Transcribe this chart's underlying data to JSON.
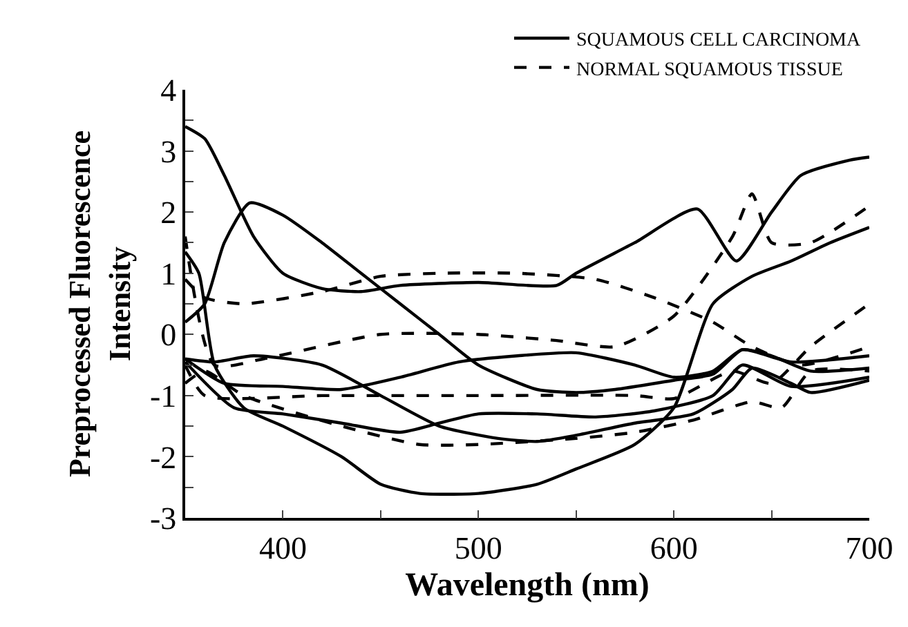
{
  "chart_data": {
    "type": "line",
    "xlabel": "Wavelength (nm)",
    "ylabel": "Preprocessed Fluorescence\nIntensity",
    "xlim": [
      350,
      700
    ],
    "ylim": [
      -3,
      4
    ],
    "xticks": [
      {
        "value": 350,
        "label": null
      },
      400,
      {
        "value": 450,
        "label": null
      },
      500,
      {
        "value": 550,
        "label": null
      },
      600,
      {
        "value": 650,
        "label": null
      },
      700
    ],
    "yticks": [
      -3,
      {
        "value": -2.5,
        "label": null
      },
      -2,
      {
        "value": -1.5,
        "label": null
      },
      -1,
      {
        "value": -0.5,
        "label": null
      },
      0,
      {
        "value": 0.5,
        "label": null
      },
      1,
      {
        "value": 1.5,
        "label": null
      },
      2,
      {
        "value": 2.5,
        "label": null
      },
      3,
      {
        "value": 3.5,
        "label": null
      },
      4
    ],
    "grid": false,
    "legend": "top right",
    "marker": "none",
    "series": [
      {
        "name": "SQUAMOUS CELL CARCINOMA",
        "color": "#000000",
        "line_style": "solid",
        "x": [
          350,
          360,
          370,
          385,
          400,
          420,
          440,
          460,
          500,
          540,
          550,
          580,
          612,
          632,
          650,
          665,
          690,
          700
        ],
        "values": [
          3.4,
          3.2,
          2.6,
          1.6,
          1.0,
          0.75,
          0.7,
          0.8,
          0.85,
          0.8,
          1.0,
          1.5,
          2.05,
          1.2,
          2.0,
          2.6,
          2.85,
          2.9
        ]
      },
      {
        "color": "#000000",
        "line_style": "solid",
        "x": [
          350,
          360,
          370,
          383,
          400,
          420,
          440,
          460,
          480,
          500,
          530,
          550,
          570,
          600,
          620,
          635,
          650,
          670,
          700
        ],
        "values": [
          0.2,
          0.5,
          1.5,
          2.15,
          1.95,
          1.5,
          1.0,
          0.5,
          0.0,
          -0.5,
          -0.9,
          -0.95,
          -0.9,
          -0.75,
          -0.65,
          -0.25,
          -0.35,
          -0.6,
          -0.55
        ]
      },
      {
        "color": "#000000",
        "line_style": "solid",
        "x": [
          350,
          357,
          365,
          380,
          400,
          430,
          450,
          470,
          500,
          530,
          550,
          580,
          600,
          620,
          640,
          660,
          680,
          700
        ],
        "values": [
          1.35,
          1.0,
          -0.5,
          -1.2,
          -1.5,
          -2.0,
          -2.45,
          -2.6,
          -2.6,
          -2.45,
          -2.2,
          -1.8,
          -1.2,
          0.5,
          0.95,
          1.2,
          1.5,
          1.75
        ]
      },
      {
        "color": "#000000",
        "line_style": "solid",
        "x": [
          350,
          365,
          385,
          420,
          450,
          480,
          510,
          530,
          550,
          580,
          610,
          630,
          640,
          660,
          670,
          700
        ],
        "values": [
          -0.4,
          -0.45,
          -0.35,
          -0.5,
          -1.0,
          -1.5,
          -1.7,
          -1.75,
          -1.65,
          -1.45,
          -1.3,
          -0.9,
          -0.55,
          -0.8,
          -0.95,
          -0.75
        ]
      },
      {
        "color": "#000000",
        "line_style": "solid",
        "x": [
          350,
          370,
          400,
          430,
          460,
          490,
          520,
          550,
          580,
          600,
          620,
          635,
          660,
          700
        ],
        "values": [
          -0.4,
          -0.8,
          -0.85,
          -0.9,
          -0.7,
          -0.45,
          -0.35,
          -0.3,
          -0.5,
          -0.7,
          -0.6,
          -0.25,
          -0.45,
          -0.35
        ]
      },
      {
        "color": "#000000",
        "line_style": "solid",
        "x": [
          350,
          375,
          400,
          430,
          460,
          480,
          500,
          530,
          560,
          590,
          620,
          635,
          660,
          700
        ],
        "values": [
          -0.45,
          -1.2,
          -1.3,
          -1.45,
          -1.6,
          -1.45,
          -1.3,
          -1.3,
          -1.35,
          -1.25,
          -1.0,
          -0.5,
          -0.85,
          -0.7
        ]
      },
      {
        "name": "NORMAL SQUAMOUS TISSUE",
        "color": "#000000",
        "line_style": "dashed",
        "x": [
          350,
          360,
          380,
          420,
          450,
          480,
          520,
          560,
          590,
          620,
          640,
          665,
          700
        ],
        "values": [
          0.9,
          0.6,
          0.5,
          0.7,
          0.95,
          1.0,
          1.0,
          0.9,
          0.6,
          0.2,
          -0.2,
          -0.5,
          -0.2
        ]
      },
      {
        "color": "#000000",
        "line_style": "dashed",
        "x": [
          350,
          365,
          390,
          450,
          500,
          540,
          570,
          600,
          630,
          640,
          650,
          670,
          700
        ],
        "values": [
          1.6,
          -0.5,
          -0.4,
          0.0,
          0.0,
          -0.1,
          -0.2,
          0.3,
          1.6,
          2.3,
          1.5,
          1.5,
          2.1
        ]
      },
      {
        "color": "#000000",
        "line_style": "dashed",
        "x": [
          350,
          360,
          420,
          500,
          580,
          600,
          630,
          650,
          670,
          700
        ],
        "values": [
          -0.5,
          -1.0,
          -1.0,
          -1.0,
          -1.0,
          -1.05,
          -0.6,
          -0.8,
          -0.2,
          0.5
        ]
      },
      {
        "color": "#000000",
        "line_style": "dashed",
        "x": [
          350,
          360,
          380,
          430,
          470,
          500,
          550,
          580,
          610,
          640,
          655,
          670,
          700
        ],
        "values": [
          -0.8,
          -0.6,
          -1.0,
          -1.5,
          -1.8,
          -1.8,
          -1.7,
          -1.6,
          -1.4,
          -1.1,
          -1.2,
          -0.6,
          -0.6
        ]
      }
    ]
  }
}
